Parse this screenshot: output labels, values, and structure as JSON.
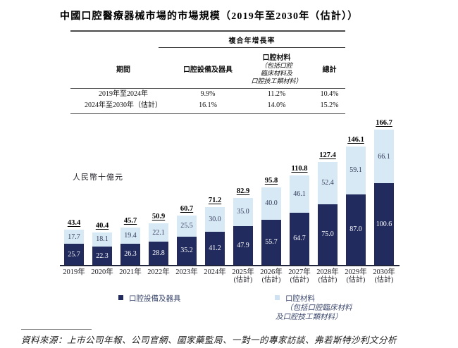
{
  "title": "中國口腔醫療器械市場的市場規模（2019年至2030年（估計））",
  "cagr_table": {
    "group_header": "複合年增長率",
    "columns": [
      "期間",
      "口腔設備及器具",
      "口腔材料",
      "總計"
    ],
    "material_subnote_lines": [
      "（包括口腔",
      "臨床材料及",
      "口腔技工類材料）"
    ],
    "rows": [
      {
        "period": "2019年至2024年",
        "equipment": "9.9%",
        "materials": "11.2%",
        "total": "10.4%"
      },
      {
        "period": "2024年至2030年（估計）",
        "equipment": "16.1%",
        "materials": "14.0%",
        "total": "15.2%"
      }
    ]
  },
  "chart_data": {
    "type": "bar",
    "stacked": true,
    "unit_label": "人民幣十億元",
    "categories": [
      {
        "label": "2019年",
        "sub": ""
      },
      {
        "label": "2020年",
        "sub": ""
      },
      {
        "label": "2021年",
        "sub": ""
      },
      {
        "label": "2022年",
        "sub": ""
      },
      {
        "label": "2023年",
        "sub": ""
      },
      {
        "label": "2024年",
        "sub": ""
      },
      {
        "label": "2025年",
        "sub": "(估計)"
      },
      {
        "label": "2026年",
        "sub": "(估計)"
      },
      {
        "label": "2027年",
        "sub": "(估計)"
      },
      {
        "label": "2028年",
        "sub": "(估計)"
      },
      {
        "label": "2029年",
        "sub": "(估計)"
      },
      {
        "label": "2030年",
        "sub": "(估計)"
      }
    ],
    "series": [
      {
        "name": "口腔設備及器具",
        "color": "#212b5e",
        "label_color": "#ffffff",
        "values": [
          25.7,
          22.3,
          26.3,
          28.8,
          35.2,
          41.2,
          47.9,
          55.7,
          64.7,
          75.0,
          87.0,
          100.6
        ]
      },
      {
        "name": "口腔材料（包括口腔臨床材料及口腔技工類材料）",
        "color": "#d8e9f6",
        "label_color": "#333c5a",
        "values": [
          17.7,
          18.1,
          19.4,
          22.1,
          25.5,
          30.0,
          35.0,
          40.0,
          46.1,
          52.4,
          59.1,
          66.1
        ]
      }
    ],
    "totals": [
      43.4,
      40.4,
      45.7,
      50.9,
      60.7,
      71.2,
      82.9,
      95.8,
      110.8,
      127.4,
      146.1,
      166.7
    ],
    "ylim": [
      0,
      175
    ],
    "grid": false,
    "legend_position": "bottom"
  },
  "legend": [
    {
      "label": "口腔設備及器具",
      "color": "#212b5e"
    },
    {
      "label": "口腔材料",
      "sublines": [
        "（包括口腔臨床材料",
        "及口腔技工類材料）"
      ],
      "color": "#cfe2f3"
    }
  ],
  "source": "資料來源：上市公司年報、公司官網、國家藥監局、一對一的專家訪談、弗若斯特沙利文分析"
}
